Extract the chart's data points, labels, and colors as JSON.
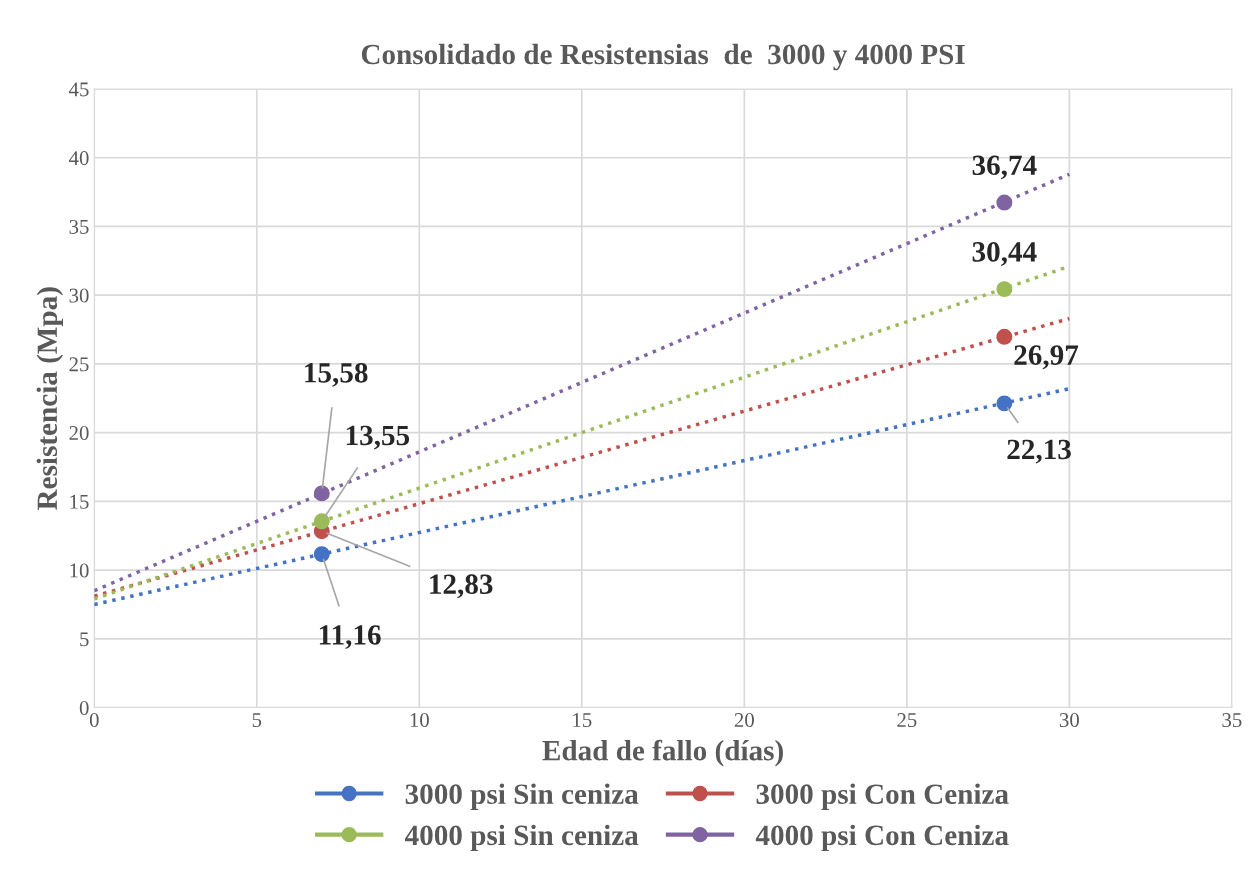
{
  "chart_data": {
    "type": "scatter",
    "title": "Consolidado de Resistensias  de  3000 y 4000 PSI",
    "xlabel": "Edad de fallo (días)",
    "ylabel": "Resistencia (Mpa)",
    "xlim": [
      0,
      35
    ],
    "xticks": [
      0,
      5,
      10,
      15,
      20,
      25,
      30,
      35
    ],
    "ylim": [
      0,
      45
    ],
    "yticks": [
      0,
      5,
      10,
      15,
      20,
      25,
      30,
      35,
      40,
      45
    ],
    "grid": true,
    "legend": "bottom",
    "marker": "circle",
    "series": [
      {
        "name": "3000 psi Sin ceniza",
        "color": "#4472c4",
        "x": [
          7,
          28
        ],
        "values": [
          11.16,
          22.13
        ],
        "value_labels": [
          "11,16",
          "22,13"
        ]
      },
      {
        "name": "3000 psi Con Ceniza",
        "color": "#c0504d",
        "x": [
          7,
          28
        ],
        "values": [
          12.83,
          26.97
        ],
        "value_labels": [
          "12,83",
          "26,97"
        ]
      },
      {
        "name": "4000 psi Sin ceniza",
        "color": "#9bbb59",
        "x": [
          7,
          28
        ],
        "values": [
          13.55,
          30.44
        ],
        "value_labels": [
          "13,55",
          "30,44"
        ]
      },
      {
        "name": "4000 psi Con Ceniza",
        "color": "#8064a2",
        "x": [
          7,
          28
        ],
        "values": [
          15.58,
          36.74
        ],
        "value_labels": [
          "15,58",
          "36,74"
        ]
      },
      {
        "type": "line",
        "color": "#4472c4",
        "x": [
          0,
          30
        ],
        "values": [
          7.5,
          23.2
        ],
        "line_style": "dotted",
        "marker": "none"
      },
      {
        "type": "line",
        "color": "#c0504d",
        "x": [
          0,
          30
        ],
        "values": [
          8.1,
          28.3
        ],
        "line_style": "dotted",
        "marker": "none"
      },
      {
        "type": "line",
        "color": "#9bbb59",
        "x": [
          0,
          30
        ],
        "values": [
          7.9,
          32.1
        ],
        "line_style": "dotted",
        "marker": "none"
      },
      {
        "type": "line",
        "color": "#8064a2",
        "x": [
          0,
          30
        ],
        "values": [
          8.5,
          38.8
        ],
        "line_style": "dotted",
        "marker": "none"
      }
    ]
  }
}
